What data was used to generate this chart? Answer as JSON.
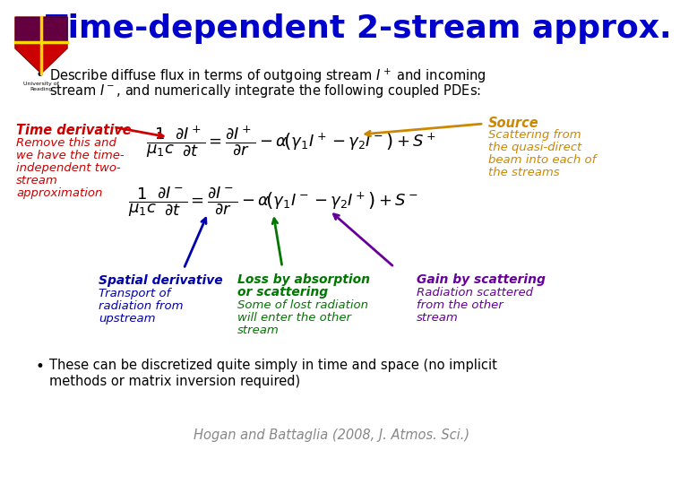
{
  "title": "Time-dependent 2-stream approx.",
  "title_color": "#0000CC",
  "bg_color": "#FFFFFF",
  "color_left": "#CC0000",
  "color_right": "#CC8800",
  "color_spatial": "#0000AA",
  "color_loss": "#007700",
  "color_gain": "#660099"
}
